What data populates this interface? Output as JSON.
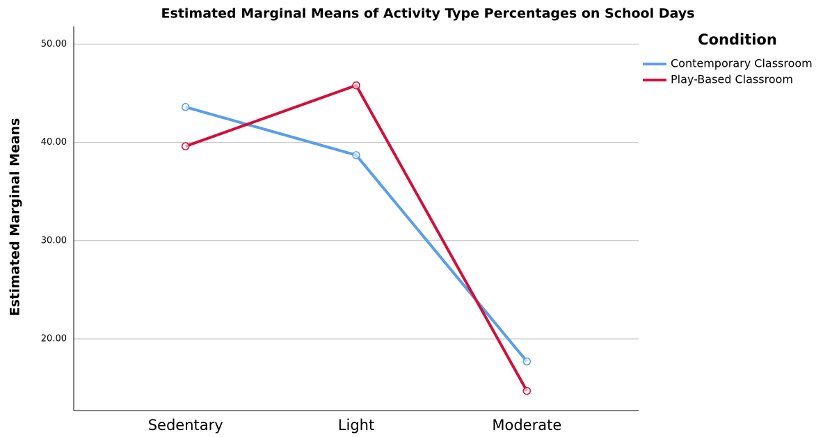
{
  "chart_data": {
    "type": "line",
    "title": "Estimated Marginal Means of Activity Type Percentages on School Days",
    "y_label": "Estimated Marginal Means",
    "legend_title": "Condition",
    "categories": [
      "Sedentary",
      "Light",
      "Moderate"
    ],
    "series": [
      {
        "name": "Contemporary Classroom",
        "color": "#5a9ee8",
        "values": [
          43.6,
          38.7,
          17.7
        ]
      },
      {
        "name": "Play-Based Classroom",
        "color": "#d0103a",
        "values": [
          39.6,
          45.8,
          14.7
        ]
      }
    ],
    "ylim": [
      12.7,
      51.8
    ],
    "yticks": [
      {
        "value": 20,
        "label": "20.00"
      },
      {
        "value": 30,
        "label": "30.00"
      },
      {
        "value": 40,
        "label": "40.00"
      },
      {
        "value": 50,
        "label": "50.00"
      }
    ],
    "grid": true
  }
}
